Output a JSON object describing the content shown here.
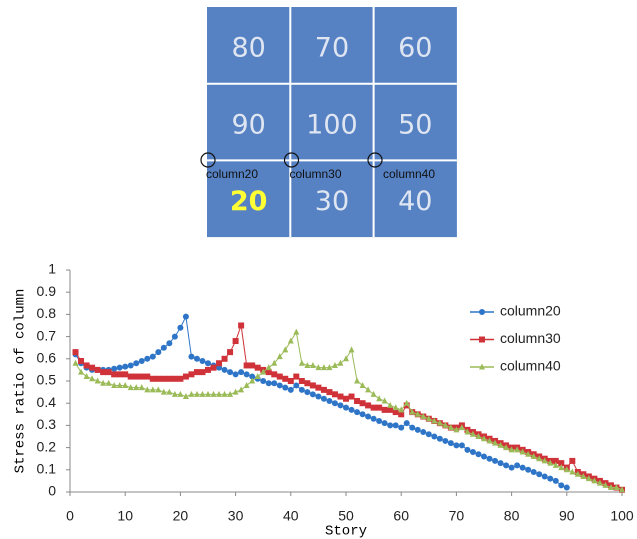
{
  "diagram": {
    "cells": [
      [
        {
          "text": "80",
          "color": "#dfe6f2"
        },
        {
          "text": "70",
          "color": "#dfe6f2"
        },
        {
          "text": "60",
          "color": "#dfe6f2"
        }
      ],
      [
        {
          "text": "90",
          "color": "#dfe6f2"
        },
        {
          "text": "100",
          "color": "#dfe6f2"
        },
        {
          "text": "50",
          "color": "#dfe6f2"
        }
      ],
      [
        {
          "text": "20",
          "color": "#ffff33"
        },
        {
          "text": "30",
          "color": "#dfe6f2"
        },
        {
          "text": "40",
          "color": "#dfe6f2"
        }
      ]
    ],
    "markers": [
      "column20",
      "column30",
      "column40"
    ]
  },
  "chart_data": {
    "type": "line",
    "x_label": "Story",
    "y_label": "Stress ratio of column",
    "xlim": [
      0,
      100
    ],
    "xticks": [
      0,
      10,
      20,
      30,
      40,
      50,
      60,
      70,
      80,
      90,
      100
    ],
    "ylim": [
      0,
      1
    ],
    "yticks": [
      0,
      0.1,
      0.2,
      0.3,
      0.4,
      0.5,
      0.6,
      0.7,
      0.8,
      0.9,
      1
    ],
    "legend": "right",
    "x": [
      1,
      2,
      3,
      4,
      5,
      6,
      7,
      8,
      9,
      10,
      11,
      12,
      13,
      14,
      15,
      16,
      17,
      18,
      19,
      20,
      21,
      22,
      23,
      24,
      25,
      26,
      27,
      28,
      29,
      30,
      31,
      32,
      33,
      34,
      35,
      36,
      37,
      38,
      39,
      40,
      41,
      42,
      43,
      44,
      45,
      46,
      47,
      48,
      49,
      50,
      51,
      52,
      53,
      54,
      55,
      56,
      57,
      58,
      59,
      60,
      61,
      62,
      63,
      64,
      65,
      66,
      67,
      68,
      69,
      70,
      71,
      72,
      73,
      74,
      75,
      76,
      77,
      78,
      79,
      80,
      81,
      82,
      83,
      84,
      85,
      86,
      87,
      88,
      89,
      90,
      91,
      92,
      93,
      94,
      95,
      96,
      97,
      98,
      99,
      100
    ],
    "series": [
      {
        "name": "column20",
        "color": "#2e75c8",
        "marker": "circle",
        "values": [
          0.62,
          0.58,
          0.56,
          0.55,
          0.55,
          0.55,
          0.55,
          0.555,
          0.56,
          0.565,
          0.57,
          0.58,
          0.59,
          0.6,
          0.61,
          0.63,
          0.65,
          0.67,
          0.7,
          0.74,
          0.79,
          0.61,
          0.6,
          0.59,
          0.58,
          0.57,
          0.56,
          0.55,
          0.54,
          0.53,
          0.54,
          0.53,
          0.52,
          0.51,
          0.5,
          0.49,
          0.49,
          0.48,
          0.47,
          0.46,
          0.48,
          0.46,
          0.45,
          0.44,
          0.43,
          0.42,
          0.41,
          0.4,
          0.39,
          0.38,
          0.37,
          0.36,
          0.35,
          0.34,
          0.33,
          0.32,
          0.31,
          0.3,
          0.3,
          0.29,
          0.31,
          0.29,
          0.28,
          0.27,
          0.26,
          0.25,
          0.24,
          0.23,
          0.22,
          0.21,
          0.21,
          0.19,
          0.18,
          0.17,
          0.16,
          0.15,
          0.14,
          0.13,
          0.12,
          0.11,
          0.12,
          0.11,
          0.1,
          0.09,
          0.08,
          0.07,
          0.06,
          0.05,
          0.03,
          0.02,
          null,
          null,
          null,
          null,
          null,
          null,
          null,
          null,
          null,
          null
        ]
      },
      {
        "name": "column30",
        "color": "#d0323a",
        "marker": "square",
        "values": [
          0.63,
          0.59,
          0.57,
          0.56,
          0.55,
          0.54,
          0.54,
          0.53,
          0.53,
          0.53,
          0.52,
          0.52,
          0.52,
          0.52,
          0.51,
          0.51,
          0.51,
          0.51,
          0.51,
          0.51,
          0.52,
          0.53,
          0.54,
          0.54,
          0.55,
          0.56,
          0.58,
          0.6,
          0.63,
          0.68,
          0.75,
          0.57,
          0.57,
          0.56,
          0.55,
          0.54,
          0.53,
          0.52,
          0.51,
          0.5,
          0.52,
          0.5,
          0.49,
          0.48,
          0.47,
          0.46,
          0.45,
          0.44,
          0.43,
          0.42,
          0.43,
          0.41,
          0.4,
          0.39,
          0.38,
          0.38,
          0.37,
          0.37,
          0.36,
          0.35,
          0.39,
          0.36,
          0.35,
          0.34,
          0.33,
          0.32,
          0.31,
          0.3,
          0.29,
          0.29,
          0.3,
          0.28,
          0.27,
          0.26,
          0.25,
          0.24,
          0.23,
          0.22,
          0.21,
          0.2,
          0.2,
          0.19,
          0.18,
          0.17,
          0.16,
          0.15,
          0.14,
          0.14,
          0.13,
          0.11,
          0.14,
          0.09,
          0.08,
          0.07,
          0.06,
          0.05,
          0.04,
          0.03,
          0.02,
          0.01
        ]
      },
      {
        "name": "column40",
        "color": "#9bbb59",
        "marker": "triangle",
        "values": [
          0.58,
          0.54,
          0.52,
          0.51,
          0.5,
          0.49,
          0.49,
          0.48,
          0.48,
          0.48,
          0.47,
          0.47,
          0.47,
          0.46,
          0.46,
          0.46,
          0.45,
          0.45,
          0.44,
          0.44,
          0.43,
          0.44,
          0.44,
          0.44,
          0.44,
          0.44,
          0.44,
          0.44,
          0.44,
          0.45,
          0.46,
          0.48,
          0.5,
          0.52,
          0.54,
          0.56,
          0.58,
          0.61,
          0.64,
          0.68,
          0.72,
          0.58,
          0.57,
          0.57,
          0.56,
          0.56,
          0.56,
          0.57,
          0.58,
          0.6,
          0.64,
          0.5,
          0.48,
          0.46,
          0.44,
          0.42,
          0.41,
          0.39,
          0.38,
          0.37,
          0.4,
          0.36,
          0.35,
          0.34,
          0.33,
          0.32,
          0.31,
          0.3,
          0.29,
          0.28,
          0.29,
          0.27,
          0.26,
          0.25,
          0.24,
          0.23,
          0.22,
          0.21,
          0.2,
          0.19,
          0.19,
          0.18,
          0.17,
          0.16,
          0.15,
          0.14,
          0.13,
          0.12,
          0.11,
          0.1,
          0.09,
          0.08,
          0.07,
          0.06,
          0.05,
          0.04,
          0.03,
          0.02,
          0.02,
          0.01
        ]
      }
    ]
  }
}
